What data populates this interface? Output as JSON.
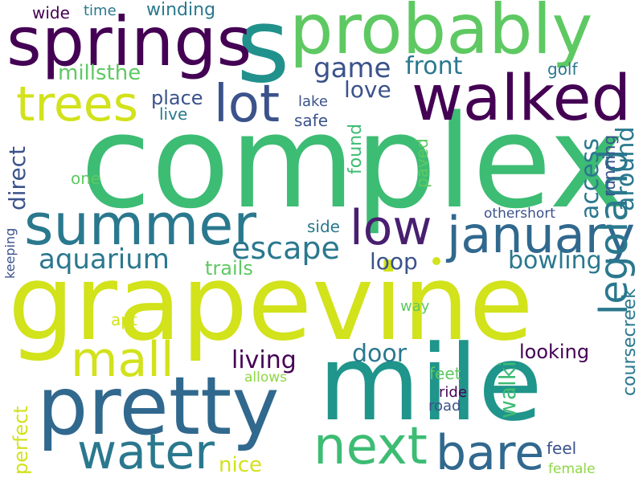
{
  "words": [
    {
      "text": "complex",
      "color": "#3dbc74",
      "vertical": false
    },
    {
      "text": "grapevine",
      "color": "#d2e21b",
      "vertical": false
    },
    {
      "text": "mile",
      "color": "#1f958b",
      "vertical": false
    },
    {
      "text": "probably",
      "color": "#5ec962",
      "vertical": false
    },
    {
      "text": "s",
      "color": "#21918c",
      "vertical": false
    },
    {
      "text": "springs",
      "color": "#440154",
      "vertical": false
    },
    {
      "text": "walked",
      "color": "#440154",
      "vertical": false
    },
    {
      "text": "pretty",
      "color": "#31688e",
      "vertical": false
    },
    {
      "text": "summer",
      "color": "#2a788e",
      "vertical": false
    },
    {
      "text": "january",
      "color": "#31688e",
      "vertical": false
    },
    {
      "text": "lot",
      "color": "#3b528b",
      "vertical": false
    },
    {
      "text": "trees",
      "color": "#d2e21b",
      "vertical": false
    },
    {
      "text": "water",
      "color": "#2a788e",
      "vertical": false
    },
    {
      "text": "next",
      "color": "#3dbc74",
      "vertical": false
    },
    {
      "text": "bare",
      "color": "#31688e",
      "vertical": false
    },
    {
      "text": "low",
      "color": "#481f70",
      "vertical": false
    },
    {
      "text": "mall",
      "color": "#d2e21b",
      "vertical": false
    },
    {
      "text": "legoland",
      "color": "#2a788e",
      "vertical": true
    },
    {
      "text": "escape",
      "color": "#2a788e",
      "vertical": false
    },
    {
      "text": "aquarium",
      "color": "#2a788e",
      "vertical": false
    },
    {
      "text": "game",
      "color": "#3b528b",
      "vertical": false
    },
    {
      "text": "front",
      "color": "#2a788e",
      "vertical": false
    },
    {
      "text": "access",
      "color": "#2a788e",
      "vertical": true
    },
    {
      "text": "around",
      "color": "#2a788e",
      "vertical": true
    },
    {
      "text": "living",
      "color": "#440154",
      "vertical": false
    },
    {
      "text": "bowling",
      "color": "#2a788e",
      "vertical": false
    },
    {
      "text": "door",
      "color": "#2a788e",
      "vertical": false
    },
    {
      "text": "loop",
      "color": "#3b528b",
      "vertical": false
    },
    {
      "text": "love",
      "color": "#3b528b",
      "vertical": false
    },
    {
      "text": "direct",
      "color": "#3b528b",
      "vertical": true
    },
    {
      "text": "walki",
      "color": "#3dbc74",
      "vertical": true
    },
    {
      "text": "millsthe",
      "color": "#5ec962",
      "vertical": false
    },
    {
      "text": "place",
      "color": "#3b528b",
      "vertical": false
    },
    {
      "text": "perfect",
      "color": "#d2e21b",
      "vertical": true
    },
    {
      "text": "nice",
      "color": "#d2e21b",
      "vertical": false
    },
    {
      "text": "trails",
      "color": "#5ec962",
      "vertical": false
    },
    {
      "text": "looking",
      "color": "#440154",
      "vertical": false
    },
    {
      "text": "coursecreek",
      "color": "#2a788e",
      "vertical": true
    },
    {
      "text": "winding",
      "color": "#2a788e",
      "vertical": false
    },
    {
      "text": "wide",
      "color": "#440154",
      "vertical": false
    },
    {
      "text": "time",
      "color": "#2a788e",
      "vertical": false
    },
    {
      "text": "golf",
      "color": "#2a788e",
      "vertical": false
    },
    {
      "text": "running",
      "color": "#3b528b",
      "vertical": true
    },
    {
      "text": "found",
      "color": "#3dbc74",
      "vertical": true
    },
    {
      "text": "paved",
      "color": "#5ec962",
      "vertical": true
    },
    {
      "text": "safe",
      "color": "#3b528b",
      "vertical": false
    },
    {
      "text": "live",
      "color": "#2a788e",
      "vertical": false
    },
    {
      "text": "lake",
      "color": "#3b528b",
      "vertical": false
    },
    {
      "text": "one",
      "color": "#5ec962",
      "vertical": false
    },
    {
      "text": "othershort",
      "color": "#3b528b",
      "vertical": false
    },
    {
      "text": "side",
      "color": "#2a788e",
      "vertical": false
    },
    {
      "text": "keeping",
      "color": "#3b528b",
      "vertical": true
    },
    {
      "text": "feet",
      "color": "#5ec962",
      "vertical": false
    },
    {
      "text": "road",
      "color": "#3b528b",
      "vertical": false
    },
    {
      "text": "ride",
      "color": "#440154",
      "vertical": false
    },
    {
      "text": "way",
      "color": "#5ec962",
      "vertical": false
    },
    {
      "text": "apt",
      "color": "#d2e21b",
      "vertical": false
    },
    {
      "text": "allows",
      "color": "#8fd744",
      "vertical": false
    },
    {
      "text": "feel",
      "color": "#3b528b",
      "vertical": false
    },
    {
      "text": "female",
      "color": "#8fd744",
      "vertical": false
    }
  ]
}
